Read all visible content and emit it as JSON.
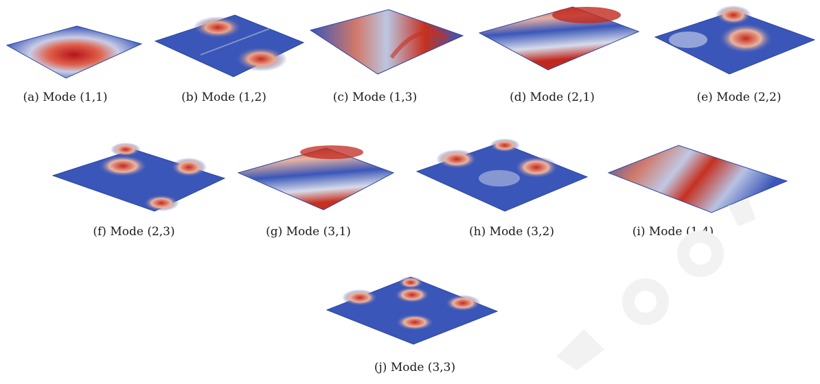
{
  "figure": {
    "panels": [
      {
        "id": "a",
        "caption": "(a) Mode (1,1)"
      },
      {
        "id": "b",
        "caption": "(b) Mode (1,2)"
      },
      {
        "id": "c",
        "caption": "(c) Mode (1,3)"
      },
      {
        "id": "d",
        "caption": "(d) Mode (2,1)"
      },
      {
        "id": "e",
        "caption": "(e) Mode (2,2)"
      },
      {
        "id": "f",
        "caption": "(f) Mode (2,3)"
      },
      {
        "id": "g",
        "caption": "(g) Mode (3,1)"
      },
      {
        "id": "h",
        "caption": "(h) Mode (3,2)"
      },
      {
        "id": "i",
        "caption": "(i) Mode (1,4)"
      },
      {
        "id": "j",
        "caption": "(j) Mode (3,3)"
      }
    ]
  },
  "colors": {
    "plate_blue": "#3a56b8",
    "peak_red": "#c0281e",
    "mid_white": "#dfe4ef",
    "underside": "#7a6a60"
  }
}
